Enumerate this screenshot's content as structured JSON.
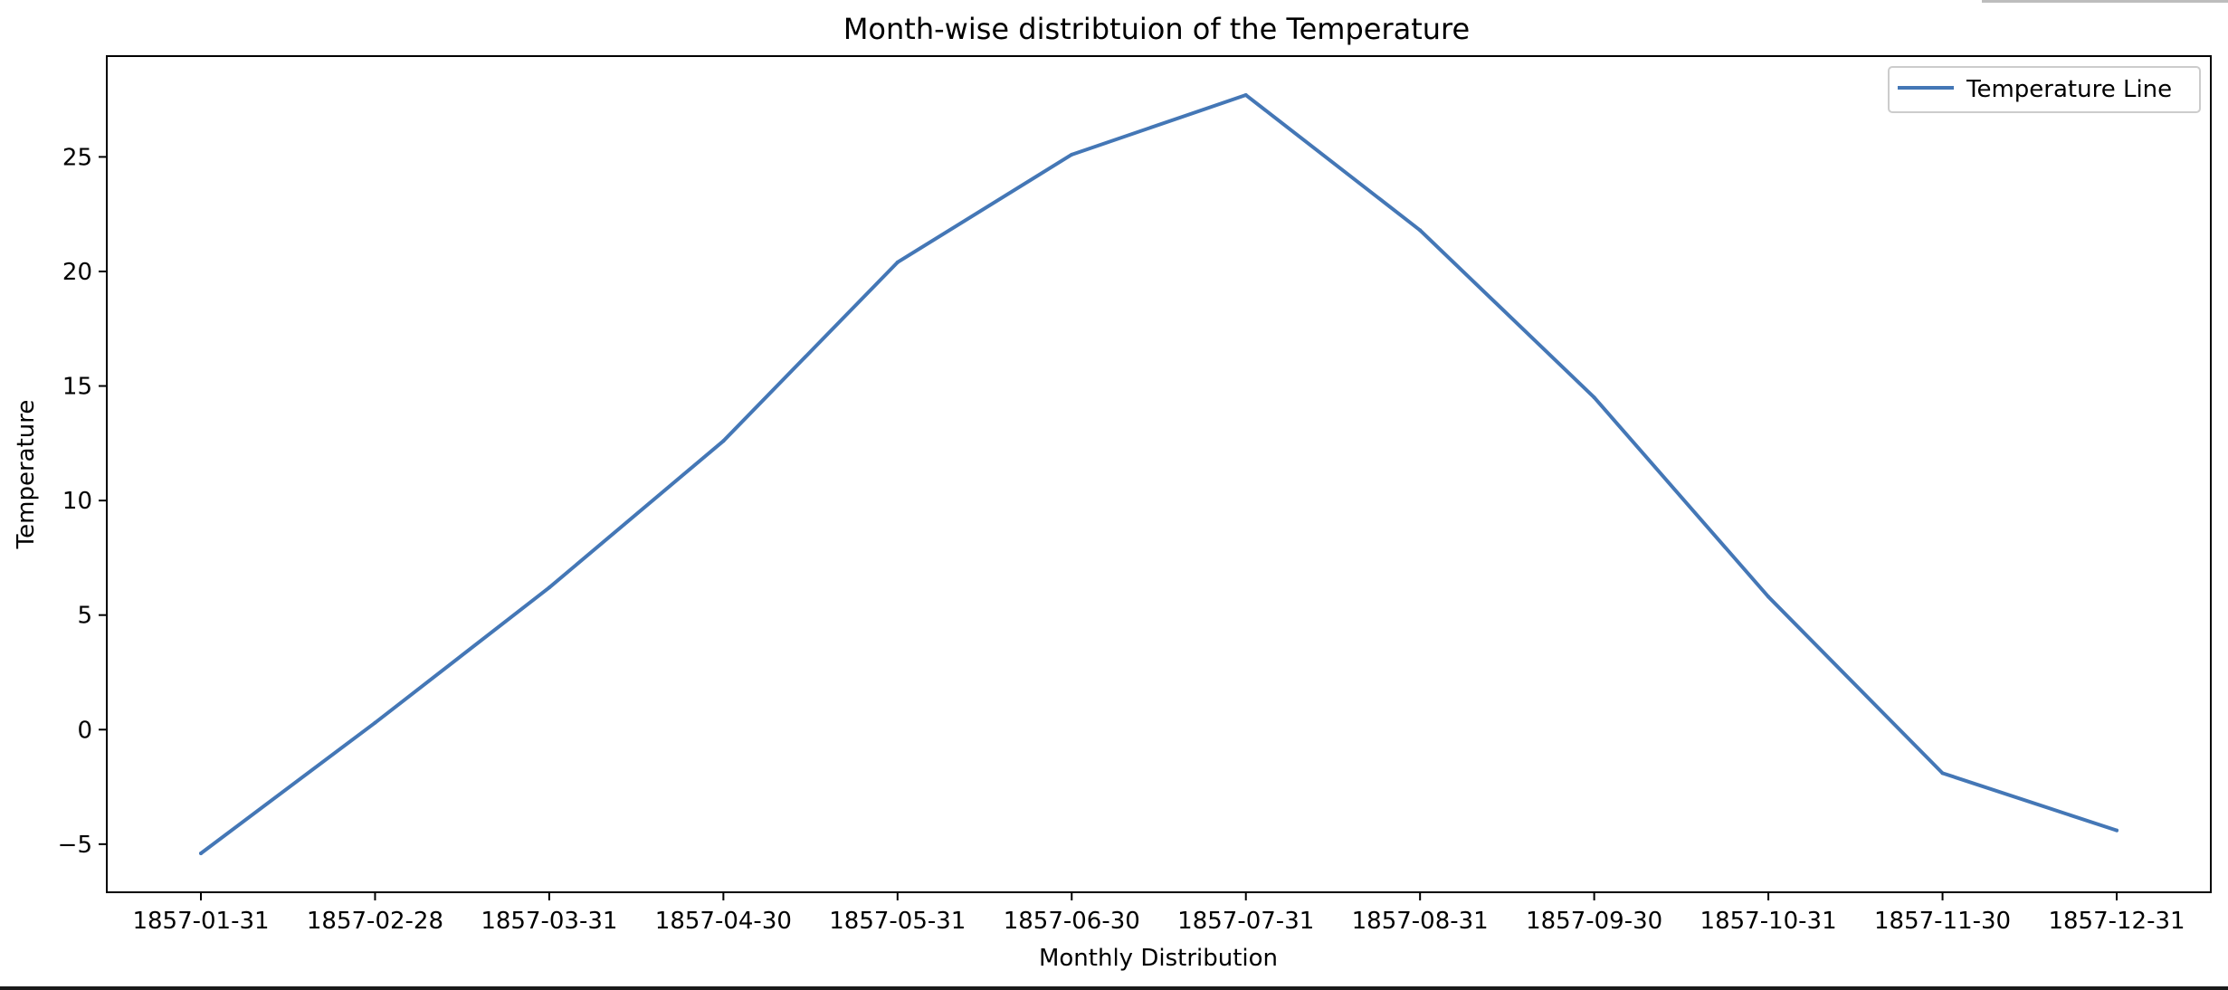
{
  "chart_data": {
    "type": "line",
    "title": "Month-wise distribtuion of the Temperature",
    "xlabel": "Monthly Distribution",
    "ylabel": "Temperature",
    "categories": [
      "1857-01-31",
      "1857-02-28",
      "1857-03-31",
      "1857-04-30",
      "1857-05-31",
      "1857-06-30",
      "1857-07-31",
      "1857-08-31",
      "1857-09-30",
      "1857-10-31",
      "1857-11-30",
      "1857-12-31"
    ],
    "series": [
      {
        "name": "Temperature Line",
        "values": [
          -5.4,
          0.3,
          6.2,
          12.6,
          20.4,
          25.1,
          27.7,
          21.8,
          14.5,
          5.8,
          -1.9,
          -4.4
        ],
        "color": "#4477b6"
      }
    ],
    "yticks": [
      -5,
      0,
      5,
      10,
      15,
      20,
      25
    ],
    "yticklabels": [
      "−5",
      "0",
      "5",
      "10",
      "15",
      "20",
      "25"
    ],
    "ylim": [
      -7.1,
      29.4
    ],
    "legend": "top-right",
    "grid": false
  }
}
